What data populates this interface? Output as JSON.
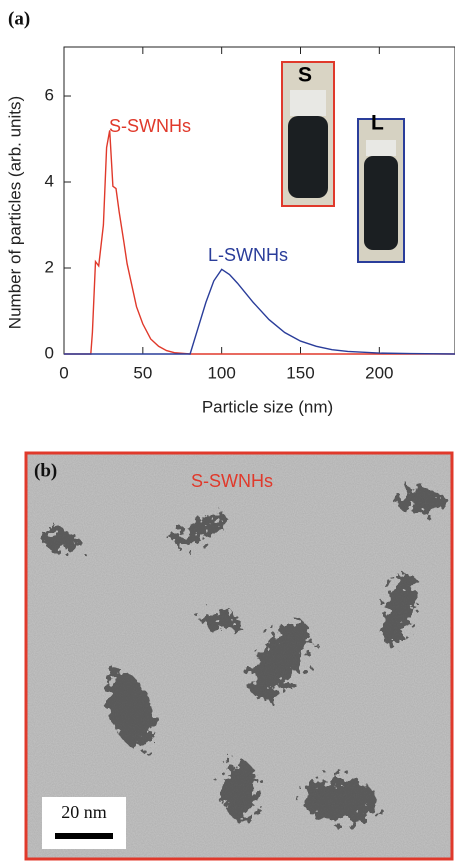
{
  "chart_data": {
    "type": "line",
    "panel_label": "(a)",
    "x_label": "Particle size (nm)",
    "y_label": "Number of particles (arb. units)",
    "xlim": [
      0,
      248
    ],
    "ylim": [
      0,
      7.14
    ],
    "xticks": [
      0,
      50,
      100,
      150,
      200
    ],
    "yticks": [
      0,
      2,
      4,
      6
    ],
    "inset_labels": [
      "S",
      "L"
    ],
    "series": [
      {
        "name": "S-SWNHs",
        "color": "#e0392b",
        "x": [
          0,
          17,
          18,
          20,
          22,
          25,
          27,
          29,
          31,
          33,
          35,
          38,
          40,
          43,
          46,
          50,
          55,
          60,
          65,
          70,
          80,
          248
        ],
        "values": [
          0,
          0,
          0.5,
          2.15,
          2.05,
          3.0,
          4.8,
          5.2,
          3.9,
          3.85,
          3.3,
          2.6,
          2.1,
          1.6,
          1.1,
          0.7,
          0.35,
          0.18,
          0.08,
          0.03,
          0,
          0
        ]
      },
      {
        "name": "L-SWNHs",
        "color": "#2a3d9a",
        "x": [
          0,
          80,
          85,
          90,
          95,
          100,
          105,
          110,
          120,
          130,
          140,
          150,
          160,
          170,
          180,
          200,
          220,
          248
        ],
        "values": [
          0,
          0,
          0.6,
          1.2,
          1.7,
          1.97,
          1.85,
          1.65,
          1.2,
          0.8,
          0.5,
          0.3,
          0.18,
          0.1,
          0.06,
          0.02,
          0.01,
          0
        ]
      }
    ]
  },
  "micrograph": {
    "panel_label": "(b)",
    "label": "S-SWNHs",
    "scale_bar": "20 nm"
  }
}
